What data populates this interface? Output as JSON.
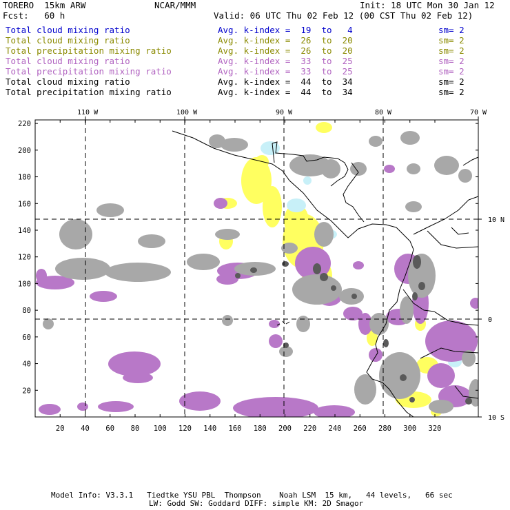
{
  "header": {
    "model": "TORERO  15km ARW",
    "center": "NCAR/MMM",
    "init": "Init: 18 UTC Mon 30 Jan 12",
    "fcst": "Fcst:   60 h",
    "valid": "Valid: 06 UTC Thu 02 Feb 12 (00 CST Thu 02 Feb 12)"
  },
  "legend": [
    {
      "field": "Total cloud mixing ratio",
      "kindex": "Avg. k-index =  19  to   4",
      "sm": "sm= 2",
      "color": "#0000cc"
    },
    {
      "field": "Total cloud mixing ratio",
      "kindex": "Avg. k-index =  26  to  20",
      "sm": "sm= 2",
      "color": "#8a8a00"
    },
    {
      "field": "Total precipitation mixing ratio",
      "kindex": "Avg. k-index =  26  to  20",
      "sm": "sm= 2",
      "color": "#8a8a00"
    },
    {
      "field": "Total cloud mixing ratio",
      "kindex": "Avg. k-index =  33  to  25",
      "sm": "sm= 2",
      "color": "#b062c0"
    },
    {
      "field": "Total precipitation mixing ratio",
      "kindex": "Avg. k-index =  33  to  25",
      "sm": "sm= 2",
      "color": "#b062c0"
    },
    {
      "field": "Total cloud mixing ratio",
      "kindex": "Avg. k-index =  44  to  34",
      "sm": "sm= 2",
      "color": "#000000"
    },
    {
      "field": "Total precipitation mixing ratio",
      "kindex": "Avg. k-index =  44  to  34",
      "sm": "sm= 2",
      "color": "#000000"
    }
  ],
  "map": {
    "lon_labels": [
      "110 W",
      "100 W",
      "90 W",
      "80 W",
      "70 W"
    ],
    "lat_labels": [
      "10 N",
      "0",
      "10 S"
    ],
    "y_ticks": [
      "220",
      "200",
      "180",
      "160",
      "140",
      "120",
      "100",
      "80",
      "60",
      "40",
      "20"
    ],
    "x_ticks": [
      "20",
      "40",
      "60",
      "80",
      "100",
      "120",
      "140",
      "160",
      "180",
      "200",
      "220",
      "240",
      "260",
      "280",
      "300",
      "320"
    ],
    "colors": {
      "gray": "#a8a8a8",
      "dark_gray": "#5a5a5a",
      "purple": "#b878c8",
      "yellow": "#ffff60",
      "cyan": "#c8f0f8",
      "coast": "#000000"
    }
  },
  "footer": {
    "line1": "Model Info: V3.3.1   Tiedtke YSU PBL  Thompson    Noah LSM  15 km,   44 levels,   66 sec",
    "line2": "LW: Godd SW: Goddard DIFF: simple KM: 2D Smagor"
  }
}
